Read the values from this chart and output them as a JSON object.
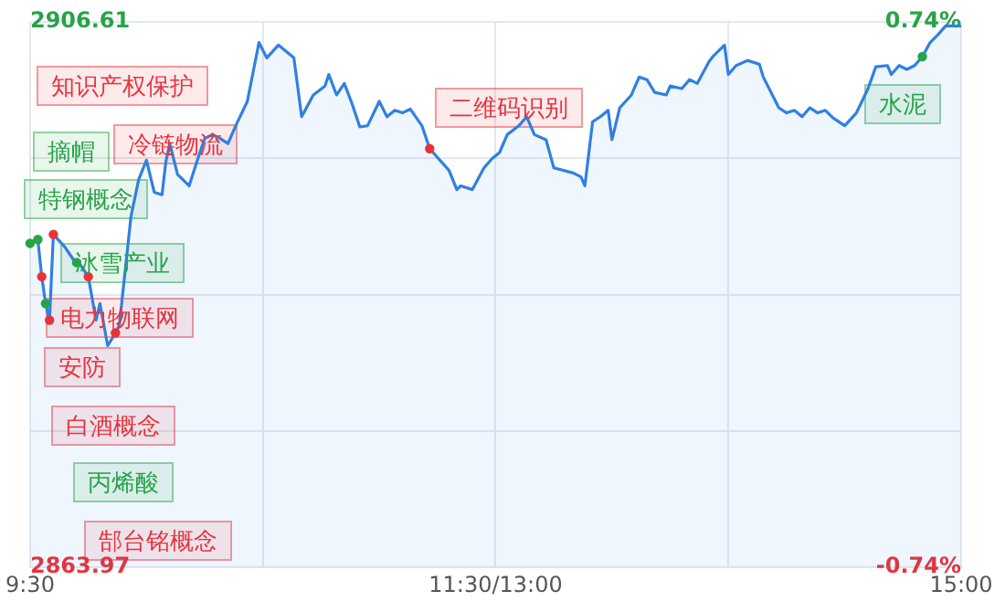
{
  "chart_data": {
    "type": "area",
    "categories": [
      "9:30",
      null,
      null,
      null,
      null,
      null,
      null,
      null,
      null,
      null,
      null,
      null,
      null,
      null,
      null,
      null,
      null,
      null,
      null,
      null,
      null,
      null,
      null,
      null,
      null,
      null,
      null,
      null,
      null,
      null,
      null,
      null,
      null,
      null,
      null,
      null,
      null,
      null,
      null,
      null,
      null,
      null,
      null,
      null,
      null,
      null,
      null,
      null,
      null,
      null,
      null,
      null,
      null,
      null,
      null,
      null,
      null,
      null,
      null,
      null,
      null,
      null,
      null,
      null,
      null,
      null,
      null,
      null,
      null,
      null,
      null,
      null,
      null,
      null,
      null,
      null,
      null,
      null,
      null,
      null,
      null,
      null,
      null,
      null,
      null,
      null,
      null,
      null,
      null,
      null,
      null,
      null,
      null,
      null,
      null,
      null,
      null,
      null,
      null,
      null,
      null,
      null,
      null,
      null,
      null,
      null,
      null,
      null,
      null,
      null,
      null,
      null,
      null,
      null,
      null,
      null,
      null,
      null,
      null,
      null,
      "11:30/13:00",
      null,
      null,
      null,
      null,
      null,
      null,
      null,
      null,
      null,
      null,
      null,
      null,
      null,
      null,
      null,
      null,
      null,
      null,
      null,
      null,
      null,
      null,
      null,
      null,
      null,
      null,
      null,
      null,
      null,
      null,
      null,
      null,
      null,
      null,
      null,
      null,
      null,
      null,
      null,
      null,
      null,
      null,
      null,
      null,
      null,
      null,
      null,
      null,
      null,
      null,
      null,
      null,
      null,
      null,
      null,
      null,
      null,
      null,
      null,
      null,
      null,
      null,
      null,
      null,
      null,
      null,
      null,
      null,
      null,
      null,
      null,
      null,
      null,
      null,
      null,
      null,
      null,
      null,
      null,
      null,
      null,
      null,
      null,
      null,
      null,
      null,
      null,
      null,
      null,
      null,
      null,
      null,
      null,
      null,
      null,
      null,
      null,
      null,
      null,
      null,
      null,
      null,
      null,
      null,
      null,
      null,
      null,
      null,
      null,
      null,
      null,
      null,
      null,
      null,
      null,
      null,
      null,
      null,
      null,
      "15:00"
    ],
    "series": [
      {
        "color": "#2f80e3",
        "values": [
          2889.3,
          null,
          2889.6,
          2886.7,
          2884.6,
          2883.3,
          2890.0,
          null,
          null,
          2889.0,
          null,
          2888.1,
          2887.8,
          2887.6,
          null,
          2886.7,
          null,
          2883.3,
          2884.6,
          null,
          2881.3,
          null,
          2882.3,
          2882.9,
          null,
          null,
          2891.4,
          null,
          2894.3,
          null,
          2895.8,
          null,
          2893.3,
          null,
          2893.1,
          2895.7,
          2897.1,
          null,
          2894.7,
          null,
          null,
          2893.8,
          null,
          2895.7,
          null,
          2897.5,
          null,
          2897.8,
          null,
          2897.5,
          null,
          2897.1,
          null,
          2898.5,
          null,
          null,
          2900.4,
          null,
          null,
          2905.0,
          null,
          2903.8,
          null,
          null,
          2904.8,
          null,
          2904.3,
          null,
          2903.8,
          null,
          2899.2,
          null,
          null,
          2900.9,
          null,
          null,
          2901.6,
          2902.5,
          null,
          2900.9,
          null,
          2901.8,
          null,
          2900.2,
          null,
          2898.4,
          null,
          2898.5,
          null,
          null,
          2900.4,
          null,
          2899.2,
          null,
          2899.7,
          null,
          2899.5,
          null,
          2899.8,
          null,
          null,
          2898.5,
          null,
          2896.7,
          null,
          null,
          null,
          null,
          2895.0,
          null,
          2893.5,
          2893.8,
          null,
          null,
          2893.5,
          null,
          null,
          2895.2,
          null,
          2895.9,
          null,
          2896.4,
          null,
          2897.8,
          null,
          null,
          2898.5,
          null,
          2899.2,
          null,
          2897.8,
          null,
          null,
          2897.4,
          null,
          2895.2,
          null,
          null,
          null,
          null,
          2894.8,
          null,
          2894.5,
          2893.8,
          null,
          2898.8,
          null,
          2899.2,
          null,
          2899.7,
          2897.4,
          null,
          2899.9,
          null,
          null,
          2900.9,
          null,
          2902.3,
          null,
          2902.1,
          null,
          2901.1,
          null,
          null,
          2900.9,
          2901.6,
          null,
          null,
          2901.4,
          null,
          2902.1,
          null,
          2901.8,
          null,
          null,
          2903.5,
          2903.9,
          null,
          null,
          2904.8,
          2902.5,
          null,
          2903.2,
          null,
          null,
          2903.6,
          null,
          null,
          2903.3,
          2902.3,
          null,
          null,
          null,
          2899.9,
          null,
          2899.5,
          null,
          2899.7,
          null,
          2899.2,
          null,
          2899.9,
          null,
          2899.5,
          null,
          2899.7,
          null,
          2899.1,
          null,
          null,
          2898.5,
          null,
          null,
          2899.5,
          null,
          null,
          2901.4,
          null,
          2903.1,
          null,
          null,
          2903.2,
          2902.5,
          null,
          2903.2,
          null,
          2902.9,
          null,
          2903.2,
          null,
          2903.9,
          null,
          2905.0,
          null,
          2905.6,
          null,
          2906.3,
          null,
          null,
          2906.3,
          2906.3
        ]
      },
      {
        "type": "scatter",
        "color": "#e8333c",
        "values": [
          null,
          null,
          null,
          2886.7,
          null,
          2883.3,
          2890.0,
          null,
          null,
          null,
          null,
          null,
          null,
          null,
          null,
          2886.7,
          null,
          null,
          null,
          null,
          null,
          null,
          2882.3,
          null,
          null,
          null,
          null,
          null,
          null,
          null,
          null,
          null,
          null,
          null,
          null,
          null,
          null,
          null,
          null,
          null,
          null,
          null,
          null,
          null,
          null,
          null,
          null,
          null,
          null,
          null,
          null,
          null,
          null,
          null,
          null,
          null,
          null,
          null,
          null,
          null,
          null,
          null,
          null,
          null,
          null,
          null,
          null,
          null,
          null,
          null,
          null,
          null,
          null,
          null,
          null,
          null,
          null,
          null,
          null,
          null,
          null,
          null,
          null,
          null,
          null,
          null,
          null,
          null,
          null,
          null,
          null,
          null,
          null,
          null,
          null,
          null,
          null,
          null,
          null,
          null,
          null,
          null,
          null,
          2896.7,
          null,
          null,
          null,
          null,
          null,
          null,
          null,
          null,
          null,
          null,
          null,
          null,
          null,
          null,
          null,
          null,
          null,
          null,
          null,
          null,
          null,
          null,
          null,
          null,
          null,
          null,
          null,
          null,
          null,
          null,
          null,
          null,
          null,
          null,
          null,
          null,
          null,
          null,
          null,
          null,
          null,
          null,
          null,
          null,
          null,
          null,
          null,
          null,
          null,
          null,
          null,
          null,
          null,
          null,
          null,
          null,
          null,
          null,
          null,
          null,
          null,
          null,
          null,
          null,
          null,
          null,
          null,
          null,
          null,
          null,
          null,
          null,
          null,
          null,
          null,
          null,
          null,
          null,
          null,
          null,
          null,
          null,
          null,
          null,
          null,
          null,
          null,
          null,
          null,
          null,
          null,
          null,
          null,
          null,
          null,
          null,
          null,
          null,
          null,
          null,
          null,
          null,
          null,
          null,
          null,
          null,
          null,
          null,
          null,
          null,
          null,
          null,
          null,
          null,
          null,
          null,
          null,
          null,
          null,
          null,
          null,
          null,
          null,
          null,
          null,
          null,
          null,
          null,
          null,
          null,
          null,
          null,
          null,
          null,
          null,
          null,
          null
        ]
      },
      {
        "type": "scatter",
        "color": "#27a348",
        "values": [
          2889.3,
          null,
          2889.6,
          null,
          2884.6,
          null,
          null,
          null,
          null,
          null,
          null,
          null,
          2887.8,
          null,
          null,
          null,
          null,
          null,
          null,
          null,
          null,
          null,
          null,
          null,
          null,
          null,
          null,
          null,
          null,
          null,
          null,
          null,
          null,
          null,
          null,
          null,
          null,
          null,
          null,
          null,
          null,
          null,
          null,
          null,
          null,
          null,
          null,
          null,
          null,
          null,
          null,
          null,
          null,
          null,
          null,
          null,
          null,
          null,
          null,
          null,
          null,
          null,
          null,
          null,
          null,
          null,
          null,
          null,
          null,
          null,
          null,
          null,
          null,
          null,
          null,
          null,
          null,
          null,
          null,
          null,
          null,
          null,
          null,
          null,
          null,
          null,
          null,
          null,
          null,
          null,
          null,
          null,
          null,
          null,
          null,
          null,
          null,
          null,
          null,
          null,
          null,
          null,
          null,
          null,
          null,
          null,
          null,
          null,
          null,
          null,
          null,
          null,
          null,
          null,
          null,
          null,
          null,
          null,
          null,
          null,
          null,
          null,
          null,
          null,
          null,
          null,
          null,
          null,
          null,
          null,
          null,
          null,
          null,
          null,
          null,
          null,
          null,
          null,
          null,
          null,
          null,
          null,
          null,
          null,
          null,
          null,
          null,
          null,
          null,
          null,
          null,
          null,
          null,
          null,
          null,
          null,
          null,
          null,
          null,
          null,
          null,
          null,
          null,
          null,
          null,
          null,
          null,
          null,
          null,
          null,
          null,
          null,
          null,
          null,
          null,
          null,
          null,
          null,
          null,
          null,
          null,
          null,
          null,
          null,
          null,
          null,
          null,
          null,
          null,
          null,
          null,
          null,
          null,
          null,
          null,
          null,
          null,
          null,
          null,
          null,
          null,
          null,
          null,
          null,
          null,
          null,
          null,
          null,
          null,
          null,
          null,
          null,
          null,
          null,
          null,
          null,
          null,
          null,
          null,
          null,
          null,
          null,
          null,
          null,
          null,
          null,
          null,
          null,
          null,
          null,
          2903.9,
          null,
          null,
          null,
          null,
          null,
          null,
          null,
          null,
          null,
          null
        ]
      }
    ],
    "ylim": [
      2863.97,
      2906.61
    ],
    "yticks": [
      {
        "value": 2863.97,
        "label": "2863.97"
      },
      {
        "value": 2874.63,
        "label": null
      },
      {
        "value": 2885.29,
        "label": null
      },
      {
        "value": 2895.95,
        "label": null
      },
      {
        "value": 2906.61,
        "label": "2906.61"
      }
    ],
    "y2lim": [
      -0.74,
      0.74
    ],
    "y2ticks": [
      {
        "value": -0.74,
        "label": "-0.74%"
      },
      {
        "value": 0.74,
        "label": "0.74%"
      }
    ],
    "grid": true,
    "legend": false,
    "annotations": [
      "知识产权保护",
      "摘帽",
      "冷链物流",
      "特钢概念",
      "冰雪产业",
      "电力物联网",
      "安防",
      "白酒概念",
      "丙烯酸",
      "郜台铭概念",
      "二维码识别",
      "水泥"
    ]
  }
}
